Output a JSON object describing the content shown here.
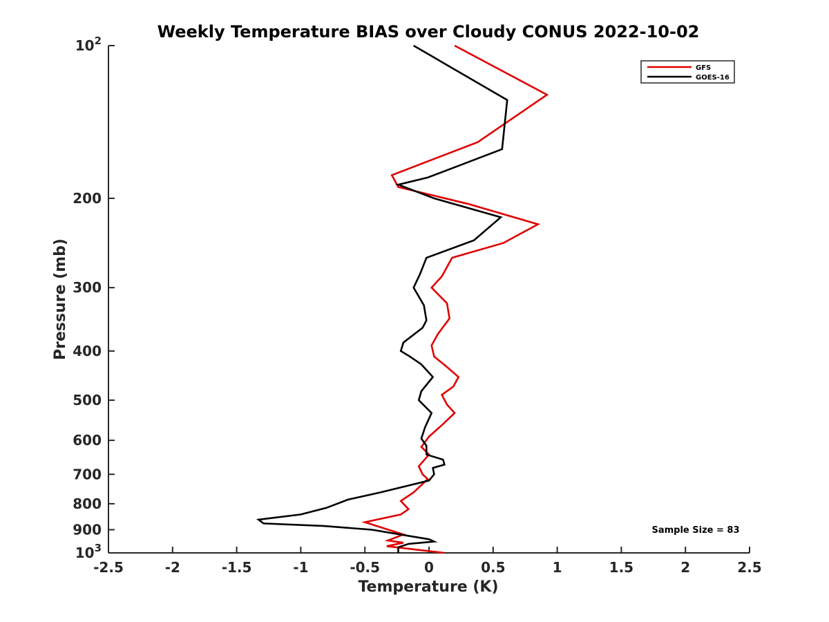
{
  "chart_data": {
    "type": "line",
    "title": "Weekly Temperature BIAS over Cloudy CONUS 2022-10-02",
    "xlabel": "Temperature (K)",
    "ylabel": "Pressure (mb)",
    "xlim": [
      -2.5,
      2.5
    ],
    "ylim": [
      100,
      1000
    ],
    "y_scale": "log",
    "y_reversed": true,
    "x_ticks": [
      "-2.5",
      "-2",
      "-1.5",
      "-1",
      "-0.5",
      "0",
      "0.5",
      "1",
      "1.5",
      "2",
      "2.5"
    ],
    "y_ticks": [
      {
        "value": 100,
        "base": "10",
        "exp": "2"
      },
      {
        "value": 200,
        "label": "200"
      },
      {
        "value": 300,
        "label": "300"
      },
      {
        "value": 400,
        "label": "400"
      },
      {
        "value": 500,
        "label": "500"
      },
      {
        "value": 600,
        "label": "600"
      },
      {
        "value": 700,
        "label": "700"
      },
      {
        "value": 800,
        "label": "800"
      },
      {
        "value": 900,
        "label": "900"
      },
      {
        "value": 1000,
        "base": "10",
        "exp": "3"
      }
    ],
    "grid": false,
    "legend_position": "top-right",
    "annotation": "Sample Size = 83",
    "series": [
      {
        "name": "GFS",
        "color": "#e00000",
        "points": [
          [
            0.2,
            100
          ],
          [
            0.92,
            125
          ],
          [
            0.38,
            155
          ],
          [
            -0.29,
            180
          ],
          [
            -0.24,
            190
          ],
          [
            0.3,
            205
          ],
          [
            0.85,
            225
          ],
          [
            0.58,
            245
          ],
          [
            0.18,
            262
          ],
          [
            0.1,
            285
          ],
          [
            0.02,
            300
          ],
          [
            0.14,
            322
          ],
          [
            0.16,
            345
          ],
          [
            0.07,
            370
          ],
          [
            0.02,
            390
          ],
          [
            0.04,
            410
          ],
          [
            0.14,
            430
          ],
          [
            0.23,
            450
          ],
          [
            0.19,
            470
          ],
          [
            0.1,
            488
          ],
          [
            0.14,
            510
          ],
          [
            0.2,
            530
          ],
          [
            0.1,
            560
          ],
          [
            0.0,
            590
          ],
          [
            -0.06,
            618
          ],
          [
            0.0,
            640
          ],
          [
            -0.08,
            675
          ],
          [
            -0.05,
            700
          ],
          [
            -0.01,
            715
          ],
          [
            -0.06,
            735
          ],
          [
            -0.12,
            760
          ],
          [
            -0.22,
            790
          ],
          [
            -0.16,
            820
          ],
          [
            -0.22,
            840
          ],
          [
            -0.5,
            870
          ],
          [
            -0.2,
            920
          ],
          [
            -0.32,
            945
          ],
          [
            -0.2,
            955
          ],
          [
            -0.33,
            970
          ],
          [
            0.12,
            1000
          ]
        ]
      },
      {
        "name": "GOES-16",
        "color": "#000000",
        "points": [
          [
            -0.12,
            100
          ],
          [
            0.61,
            128
          ],
          [
            0.57,
            160
          ],
          [
            -0.01,
            182
          ],
          [
            -0.24,
            188
          ],
          [
            0.04,
            200
          ],
          [
            0.56,
            218
          ],
          [
            0.35,
            242
          ],
          [
            -0.02,
            262
          ],
          [
            -0.07,
            282
          ],
          [
            -0.12,
            300
          ],
          [
            -0.04,
            325
          ],
          [
            -0.02,
            348
          ],
          [
            -0.05,
            360
          ],
          [
            -0.2,
            385
          ],
          [
            -0.22,
            400
          ],
          [
            -0.15,
            410
          ],
          [
            -0.06,
            425
          ],
          [
            0.03,
            450
          ],
          [
            -0.06,
            480
          ],
          [
            -0.08,
            500
          ],
          [
            0.02,
            530
          ],
          [
            -0.03,
            565
          ],
          [
            -0.06,
            595
          ],
          [
            -0.02,
            615
          ],
          [
            -0.02,
            640
          ],
          [
            0.11,
            655
          ],
          [
            0.12,
            670
          ],
          [
            0.03,
            680
          ],
          [
            0.04,
            700
          ],
          [
            0.0,
            720
          ],
          [
            -0.38,
            760
          ],
          [
            -0.63,
            785
          ],
          [
            -0.8,
            815
          ],
          [
            -1.0,
            840
          ],
          [
            -1.33,
            860
          ],
          [
            -1.29,
            875
          ],
          [
            -0.82,
            885
          ],
          [
            -0.45,
            900
          ],
          [
            0.0,
            940
          ],
          [
            0.04,
            950
          ],
          [
            -0.16,
            960
          ],
          [
            -0.24,
            975
          ],
          [
            -0.24,
            1000
          ]
        ]
      }
    ]
  }
}
